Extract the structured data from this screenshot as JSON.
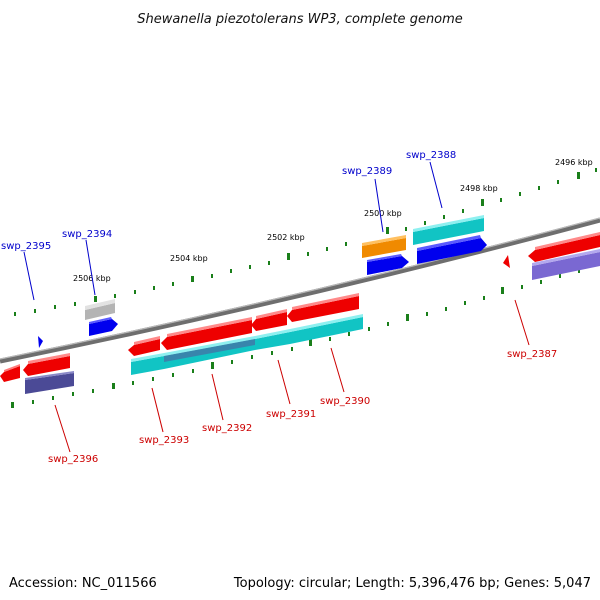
{
  "title": "Shewanella piezotolerans WP3, complete genome",
  "accession": "Accession: NC_011566",
  "summary": "Topology: circular; Length: 5,396,476 bp; Genes: 5,047",
  "scale_labels": [
    "2496 kbp",
    "2498 kbp",
    "2500 kbp",
    "2502 kbp",
    "2504 kbp",
    "2506 kbp"
  ],
  "gene_labels": {
    "swp_2387": "swp_2387",
    "swp_2388": "swp_2388",
    "swp_2389": "swp_2389",
    "swp_2390": "swp_2390",
    "swp_2391": "swp_2391",
    "swp_2392": "swp_2392",
    "swp_2393": "swp_2393",
    "swp_2394": "swp_2394",
    "swp_2395": "swp_2395",
    "swp_2396": "swp_2396"
  },
  "colors": {
    "backbone": "#777777",
    "gene_red": "#ee0000",
    "gene_blue": "#0000ee",
    "gene_cyan": "#11c4c4",
    "gene_orange": "#f08a00",
    "gene_gray": "#b4b4b4",
    "gene_purple": "#4b4a96",
    "gene_lavender": "#7a68d2",
    "gene_steel": "#3f7aa8",
    "tick_green": "#1a7f1a",
    "label_blue": "#0000cc",
    "label_red": "#cc0000"
  }
}
